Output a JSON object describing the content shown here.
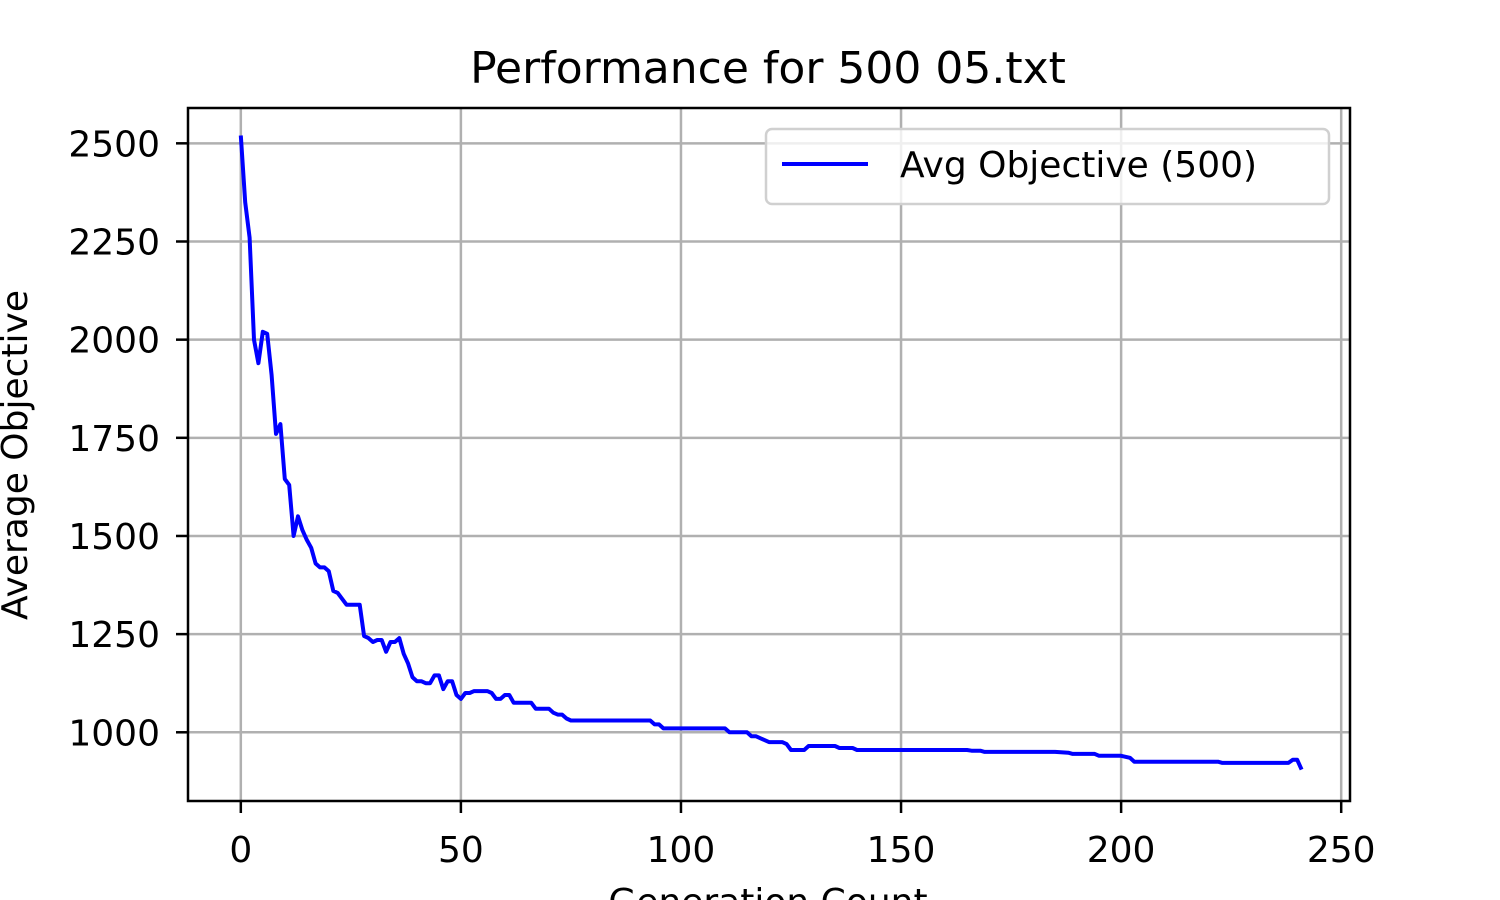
{
  "chart_data": {
    "type": "line",
    "title": "Performance for 500 05.txt",
    "xlabel": "Generation Count",
    "ylabel": "Average Objective",
    "xlim": [
      -12,
      252
    ],
    "ylim": [
      825,
      2590
    ],
    "xticks": [
      0,
      50,
      100,
      150,
      200,
      250
    ],
    "yticks": [
      1000,
      1250,
      1500,
      1750,
      2000,
      2250,
      2500
    ],
    "grid": true,
    "legend_position": "top-right",
    "series": [
      {
        "name": "Avg Objective (500)",
        "color": "#0000ff",
        "x": [
          0,
          1,
          2,
          3,
          4,
          5,
          6,
          7,
          8,
          9,
          10,
          11,
          12,
          13,
          14,
          15,
          16,
          17,
          18,
          19,
          20,
          21,
          22,
          23,
          24,
          25,
          26,
          27,
          28,
          29,
          30,
          31,
          32,
          33,
          34,
          35,
          36,
          37,
          38,
          39,
          40,
          41,
          42,
          43,
          44,
          45,
          46,
          47,
          48,
          49,
          50,
          51,
          52,
          53,
          54,
          55,
          56,
          57,
          58,
          59,
          60,
          61,
          62,
          63,
          64,
          65,
          66,
          67,
          68,
          69,
          70,
          71,
          72,
          73,
          74,
          75,
          80,
          85,
          90,
          93,
          94,
          95,
          96,
          100,
          105,
          110,
          111,
          112,
          115,
          116,
          117,
          120,
          123,
          124,
          125,
          128,
          129,
          130,
          135,
          136,
          139,
          140,
          145,
          150,
          155,
          160,
          165,
          166,
          168,
          169,
          170,
          175,
          180,
          185,
          188,
          189,
          190,
          194,
          195,
          196,
          200,
          202,
          203,
          205,
          210,
          215,
          220,
          222,
          223,
          225,
          230,
          235,
          237,
          238,
          239,
          240,
          241
        ],
        "y": [
          2520,
          2350,
          2260,
          2000,
          1940,
          2020,
          2015,
          1910,
          1760,
          1785,
          1645,
          1630,
          1500,
          1550,
          1515,
          1490,
          1470,
          1430,
          1420,
          1420,
          1410,
          1360,
          1355,
          1340,
          1325,
          1325,
          1325,
          1325,
          1245,
          1240,
          1230,
          1235,
          1235,
          1205,
          1230,
          1230,
          1240,
          1200,
          1175,
          1140,
          1130,
          1130,
          1125,
          1125,
          1145,
          1145,
          1110,
          1130,
          1130,
          1095,
          1085,
          1100,
          1100,
          1105,
          1105,
          1105,
          1105,
          1100,
          1085,
          1085,
          1095,
          1095,
          1075,
          1075,
          1075,
          1075,
          1075,
          1060,
          1060,
          1060,
          1060,
          1050,
          1045,
          1045,
          1035,
          1030,
          1030,
          1030,
          1030,
          1030,
          1020,
          1020,
          1010,
          1010,
          1010,
          1010,
          1000,
          1000,
          1000,
          990,
          990,
          975,
          975,
          970,
          955,
          955,
          965,
          965,
          965,
          960,
          960,
          955,
          955,
          955,
          955,
          955,
          955,
          953,
          953,
          950,
          950,
          950,
          950,
          950,
          948,
          945,
          945,
          945,
          940,
          940,
          940,
          935,
          925,
          925,
          925,
          925,
          925,
          925,
          922,
          922,
          922,
          922,
          922,
          922,
          930,
          930,
          905
        ]
      }
    ]
  }
}
